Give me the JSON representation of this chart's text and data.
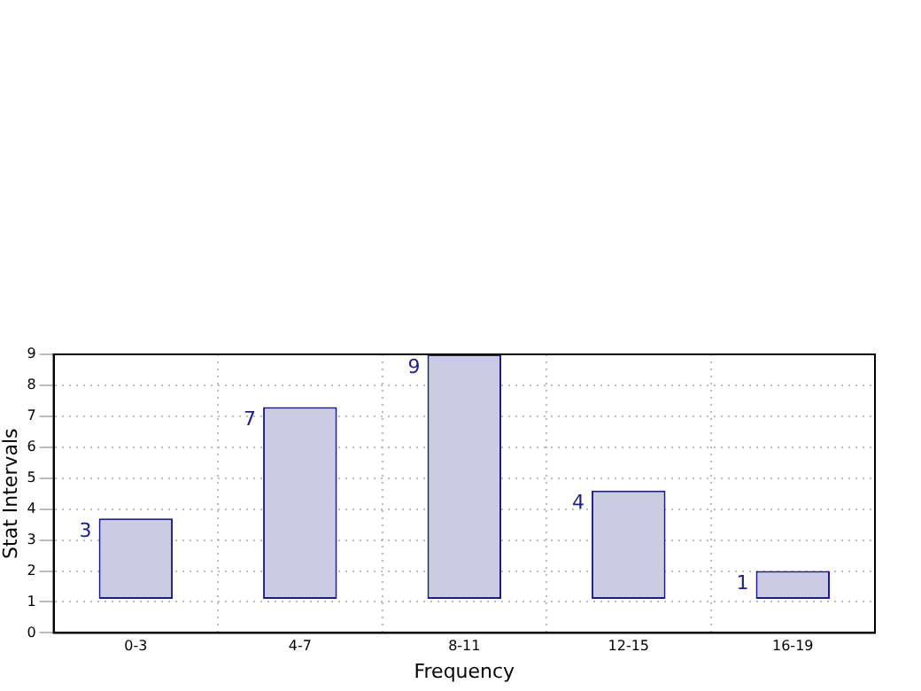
{
  "chart_data": {
    "type": "bar",
    "xlabel": "Frequency",
    "ylabel": "Stat Intervals",
    "categories": [
      "0-3",
      "4-7",
      "8-11",
      "12-15",
      "16-19"
    ],
    "base": [
      1.1,
      1.1,
      1.1,
      1.1,
      1.1
    ],
    "values": [
      2.6,
      6.2,
      7.9,
      3.5,
      0.9
    ],
    "color": "#cbcbe3",
    "value_labels": [
      "3",
      "7",
      "9",
      "4",
      "1"
    ],
    "ylim": [
      0,
      9
    ],
    "yticks": [
      0,
      1,
      2,
      3,
      4,
      5,
      6,
      7,
      8,
      9
    ],
    "grid": true
  }
}
